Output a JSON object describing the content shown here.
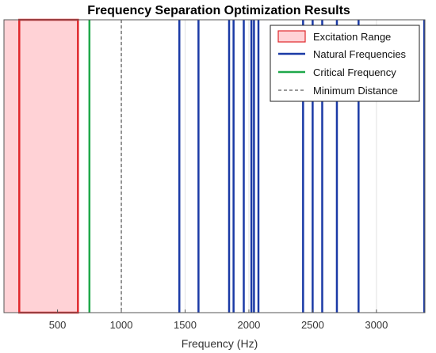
{
  "chart_data": {
    "type": "line",
    "title": "Frequency Separation Optimization Results",
    "xlabel": "Frequency (Hz)",
    "ylabel": "",
    "xlim": [
      80,
      3380
    ],
    "xticks": [
      500,
      1000,
      1500,
      2000,
      2500,
      3000
    ],
    "xtick_labels": [
      "500",
      "1000",
      "1500",
      "2000",
      "2500",
      "3000"
    ],
    "grid": true,
    "legend_position": "top-right",
    "excitation_range": [
      200,
      660
    ],
    "natural_frequencies": [
      1455,
      1605,
      1845,
      1880,
      1960,
      2020,
      2040,
      2075,
      2425,
      2500,
      2575,
      2690,
      2860,
      3375
    ],
    "critical_frequency": 750,
    "minimum_distance": 1000,
    "colors": {
      "excitation_fill": "#ffd2d6",
      "excitation_edge": "#e0282c",
      "natural": "#1b3aa6",
      "critical": "#1fa84a",
      "minimum": "#333333",
      "axis": "#555555",
      "grid": "#e2e2e2"
    },
    "legend": [
      {
        "label": "Excitation Range",
        "kind": "patch"
      },
      {
        "label": "Natural Frequencies",
        "kind": "natural"
      },
      {
        "label": "Critical Frequency",
        "kind": "critical"
      },
      {
        "label": "Minimum Distance",
        "kind": "minimum"
      }
    ]
  }
}
